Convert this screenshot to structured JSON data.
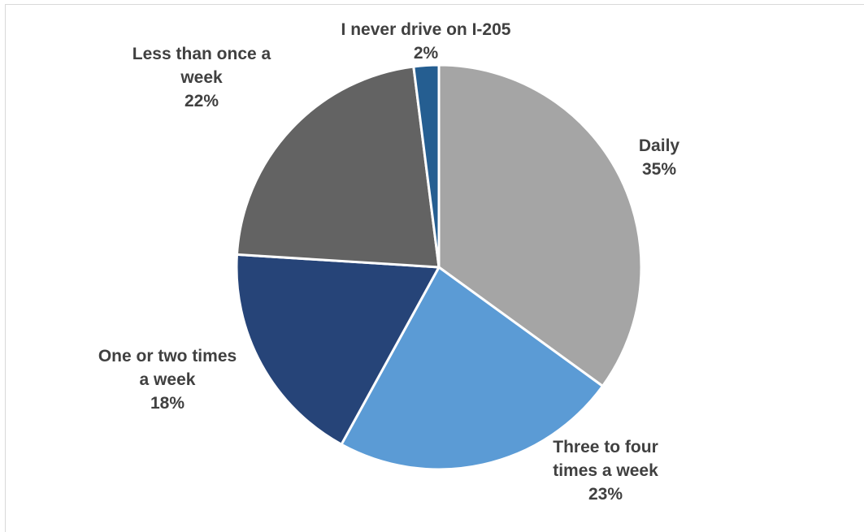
{
  "chart_data": {
    "type": "pie",
    "title": "",
    "start_angle_deg": 0,
    "direction": "clockwise",
    "slices": [
      {
        "label_lines": [
          "Daily"
        ],
        "percent_label": "35%",
        "value": 35,
        "color": "#a5a5a5"
      },
      {
        "label_lines": [
          "Three to four",
          "times a week"
        ],
        "percent_label": "23%",
        "value": 23,
        "color": "#5b9bd5"
      },
      {
        "label_lines": [
          "One or two times",
          "a week"
        ],
        "percent_label": "18%",
        "value": 18,
        "color": "#264478"
      },
      {
        "label_lines": [
          "Less than once a",
          "week"
        ],
        "percent_label": "22%",
        "value": 22,
        "color": "#636363"
      },
      {
        "label_lines": [
          "I never drive on I-205"
        ],
        "percent_label": "2%",
        "value": 2,
        "color": "#255e91"
      }
    ],
    "legend": "none",
    "data_labels": "outside"
  }
}
